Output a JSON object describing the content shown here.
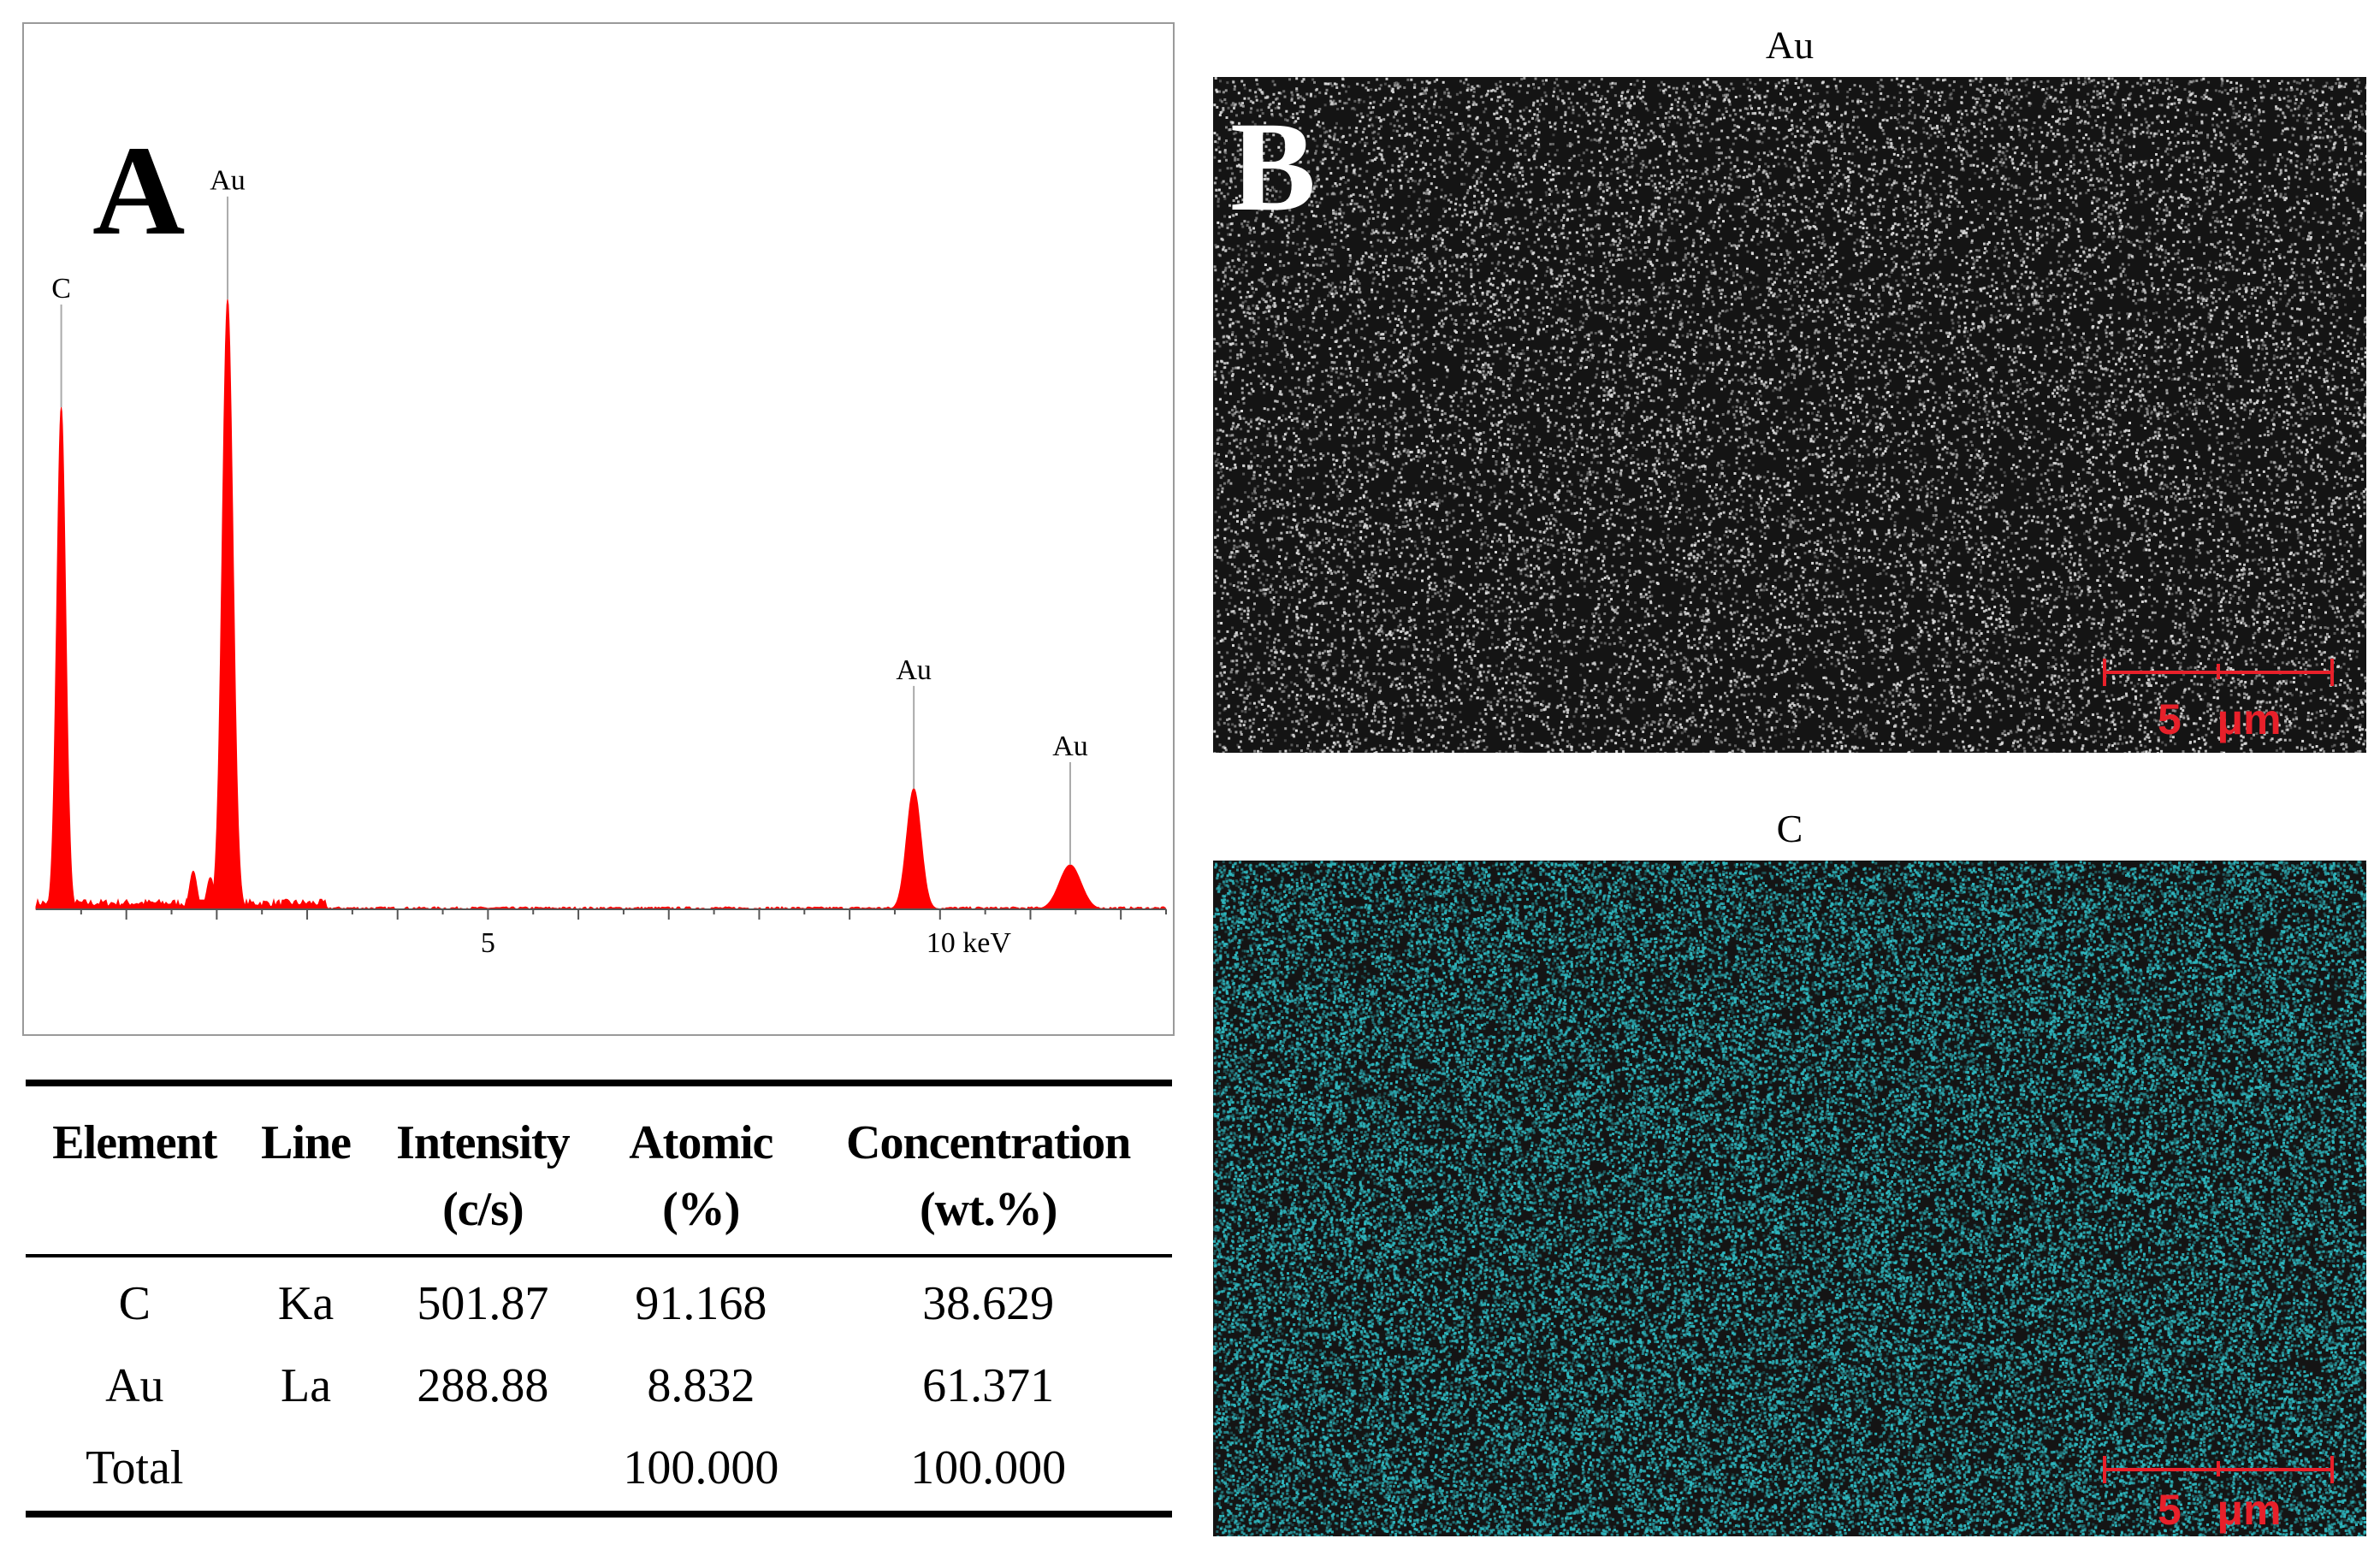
{
  "panel_a": {
    "letter": "A",
    "chart_data": {
      "type": "line",
      "title": "",
      "xlabel": "",
      "ylabel": "",
      "x_unit": "keV",
      "xlim": [
        0,
        12.5
      ],
      "ylim": [
        0,
        1.0
      ],
      "tick_labels": [
        {
          "x": 5,
          "label": "5"
        },
        {
          "x": 10,
          "label": "10 keV"
        }
      ],
      "color": "#ff0000",
      "peaks": [
        {
          "element": "C",
          "energy": 0.28,
          "height": 0.79,
          "width": 0.05,
          "labeled": true
        },
        {
          "element": "Au",
          "energy": 2.12,
          "height": 0.96,
          "width": 0.06,
          "labeled": true
        },
        {
          "element": "",
          "energy": 1.74,
          "height": 0.06,
          "width": 0.04,
          "labeled": false
        },
        {
          "element": "",
          "energy": 1.93,
          "height": 0.05,
          "width": 0.04,
          "labeled": false
        },
        {
          "element": "Au",
          "energy": 9.71,
          "height": 0.19,
          "width": 0.08,
          "labeled": true
        },
        {
          "element": "Au",
          "energy": 11.44,
          "height": 0.07,
          "width": 0.12,
          "labeled": true
        }
      ]
    }
  },
  "table": {
    "headers": [
      {
        "line1": "Element",
        "line2": ""
      },
      {
        "line1": "Line",
        "line2": ""
      },
      {
        "line1": "Intensity",
        "line2": "(c/s)"
      },
      {
        "line1": "Atomic",
        "line2": "(%)"
      },
      {
        "line1": "Concentration",
        "line2": "(wt.%)"
      }
    ],
    "rows": [
      [
        "C",
        "Ka",
        "501.87",
        "91.168",
        "38.629"
      ],
      [
        "Au",
        "La",
        "288.88",
        "8.832",
        "61.371"
      ],
      [
        "Total",
        "",
        "",
        "100.000",
        "100.000"
      ]
    ]
  },
  "panel_b": {
    "letter": "B",
    "maps": [
      {
        "title": "Au",
        "dot_color": "#d9d9d9",
        "scale_label": "5   μm"
      },
      {
        "title": "C",
        "dot_color": "#2fb8c0",
        "scale_label": "5   μm"
      }
    ],
    "scale_color": "#e8202a"
  }
}
